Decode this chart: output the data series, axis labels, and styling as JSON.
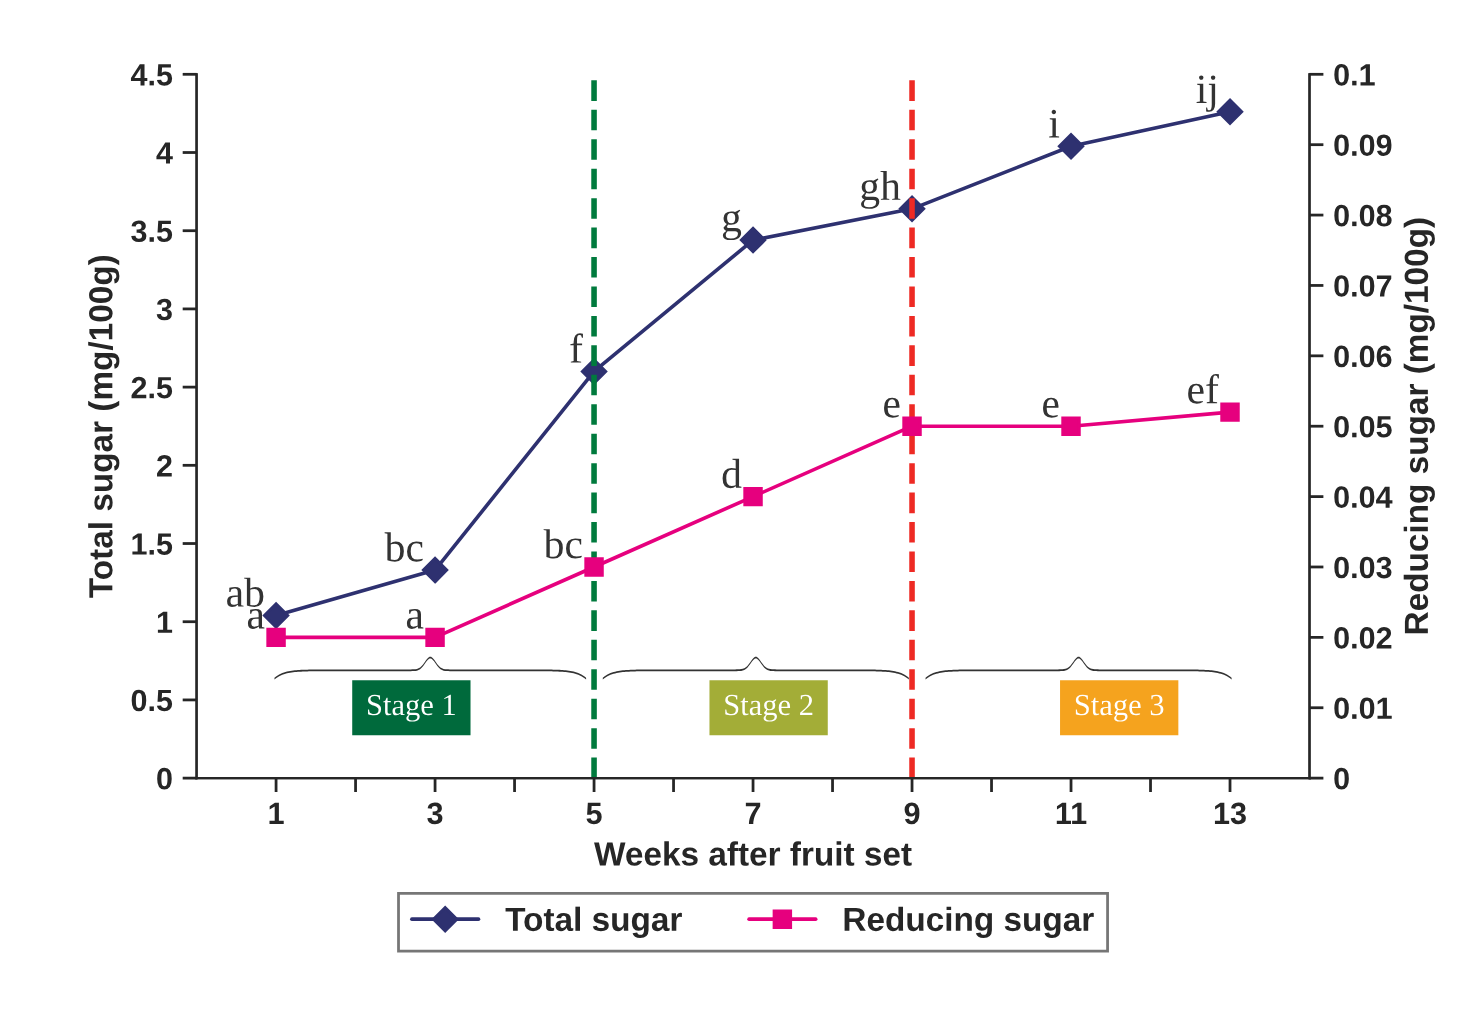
{
  "chart_data": {
    "type": "line",
    "xlabel": "Weeks after fruit set",
    "ylabel": "Total sugar (mg/100g)",
    "y2label": "Reducing sugar (mg/100g)",
    "x": [
      1,
      3,
      5,
      7,
      9,
      11,
      13
    ],
    "series": [
      {
        "name": "Total sugar",
        "color": "#2e3170",
        "marker": "diamond",
        "values": [
          1.04,
          1.33,
          2.6,
          3.44,
          3.64,
          4.04,
          4.26
        ]
      },
      {
        "name": "Reducing sugar",
        "color": "#e6007e",
        "marker": "square",
        "axis": "y2",
        "values": [
          0.02,
          0.02,
          0.03,
          0.04,
          0.05,
          0.05,
          0.052
        ]
      }
    ],
    "xlim": [
      0,
      14
    ],
    "xticks": [
      {
        "value": 1,
        "label": "1"
      },
      {
        "value": 2,
        "label": null
      },
      {
        "value": 3,
        "label": "3"
      },
      {
        "value": 4,
        "label": null
      },
      {
        "value": 5,
        "label": "5"
      },
      {
        "value": 6,
        "label": null
      },
      {
        "value": 7,
        "label": "7"
      },
      {
        "value": 8,
        "label": null
      },
      {
        "value": 9,
        "label": "9"
      },
      {
        "value": 10,
        "label": null
      },
      {
        "value": 11,
        "label": "11"
      },
      {
        "value": 12,
        "label": null
      },
      {
        "value": 13,
        "label": "13"
      }
    ],
    "ylim": [
      0,
      4.5
    ],
    "yticks": [
      0,
      0.5,
      1,
      1.5,
      2,
      2.5,
      3,
      3.5,
      4,
      4.5
    ],
    "y2lim": [
      0,
      0.1
    ],
    "y2ticks": [
      0,
      0.01,
      0.02,
      0.03,
      0.04,
      0.05,
      0.06,
      0.07,
      0.08,
      0.09,
      0.1
    ],
    "ref_lines": [
      {
        "axis": "x",
        "value": 5,
        "color": "#007a3d",
        "line_style": "dashed"
      },
      {
        "axis": "x",
        "value": 9,
        "color": "#ee2a24",
        "line_style": "dashed"
      }
    ],
    "annotations": [
      {
        "text": "ab",
        "x": 1,
        "y": 1.04
      },
      {
        "text": "bc",
        "x": 3,
        "y": 1.33
      },
      {
        "text": "f",
        "x": 5,
        "y": 2.6
      },
      {
        "text": "g",
        "x": 7,
        "y": 3.44
      },
      {
        "text": "gh",
        "x": 9,
        "y": 3.64
      },
      {
        "text": "i",
        "x": 11,
        "y": 4.04
      },
      {
        "text": "ij",
        "x": 13,
        "y": 4.26
      },
      {
        "text": "a",
        "x": 1,
        "y": 0.9
      },
      {
        "text": "a",
        "x": 3,
        "y": 0.9
      },
      {
        "text": "bc",
        "x": 5,
        "y": 1.35
      },
      {
        "text": "d",
        "x": 7,
        "y": 1.8
      },
      {
        "text": "e",
        "x": 9,
        "y": 2.25
      },
      {
        "text": "e",
        "x": 11,
        "y": 2.25
      },
      {
        "text": "ef",
        "x": 13,
        "y": 2.34
      },
      "Stage 1",
      "Stage 2",
      "Stage 3"
    ],
    "grid": false,
    "legend": "bottom"
  }
}
